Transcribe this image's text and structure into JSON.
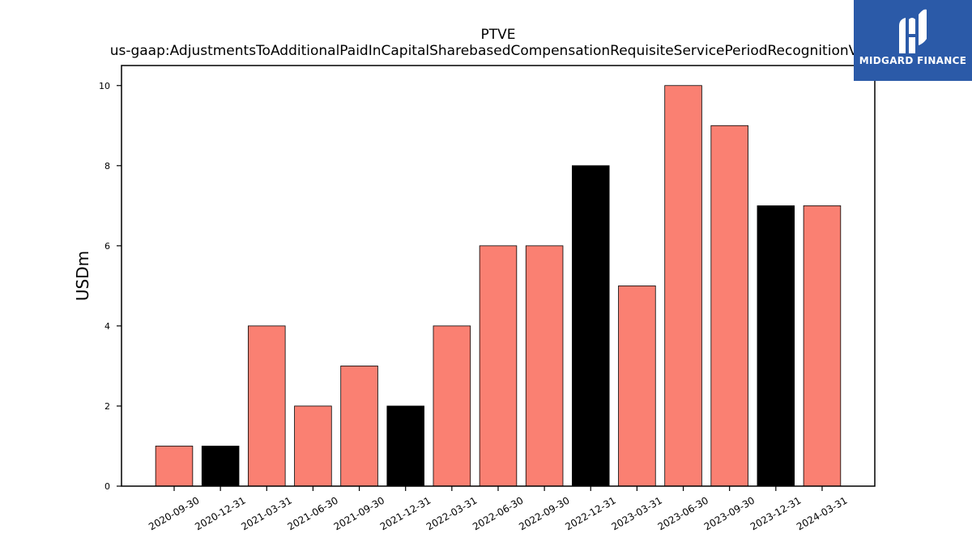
{
  "colors": {
    "salmon": "#fa8072",
    "black": "#000000",
    "logo_bg": "#2b5aa8"
  },
  "logo": {
    "text": "MIDGARD FINANCE",
    "icon": "midgard-logo-icon"
  },
  "chart_data": {
    "type": "bar",
    "title_line1": "PTVE",
    "title_line2": "us-gaap:AdjustmentsToAdditionalPaidInCapitalSharebasedCompensationRequisiteServicePeriodRecognitionValue",
    "xlabel": "",
    "ylabel": "USDm",
    "ylim": [
      0,
      10.5
    ],
    "yticks": [
      0,
      2,
      4,
      6,
      8,
      10
    ],
    "grid": false,
    "categories": [
      "2020-09-30",
      "2020-12-31",
      "2021-03-31",
      "2021-06-30",
      "2021-09-30",
      "2021-12-31",
      "2022-03-31",
      "2022-06-30",
      "2022-09-30",
      "2022-12-31",
      "2023-03-31",
      "2023-06-30",
      "2023-09-30",
      "2023-12-31",
      "2024-03-31"
    ],
    "values": [
      1,
      1,
      4,
      2,
      3,
      2,
      4,
      6,
      6,
      8,
      5,
      10,
      9,
      7,
      7
    ],
    "bar_colors": [
      "salmon",
      "black",
      "salmon",
      "salmon",
      "salmon",
      "black",
      "salmon",
      "salmon",
      "salmon",
      "black",
      "salmon",
      "salmon",
      "salmon",
      "black",
      "salmon"
    ]
  }
}
